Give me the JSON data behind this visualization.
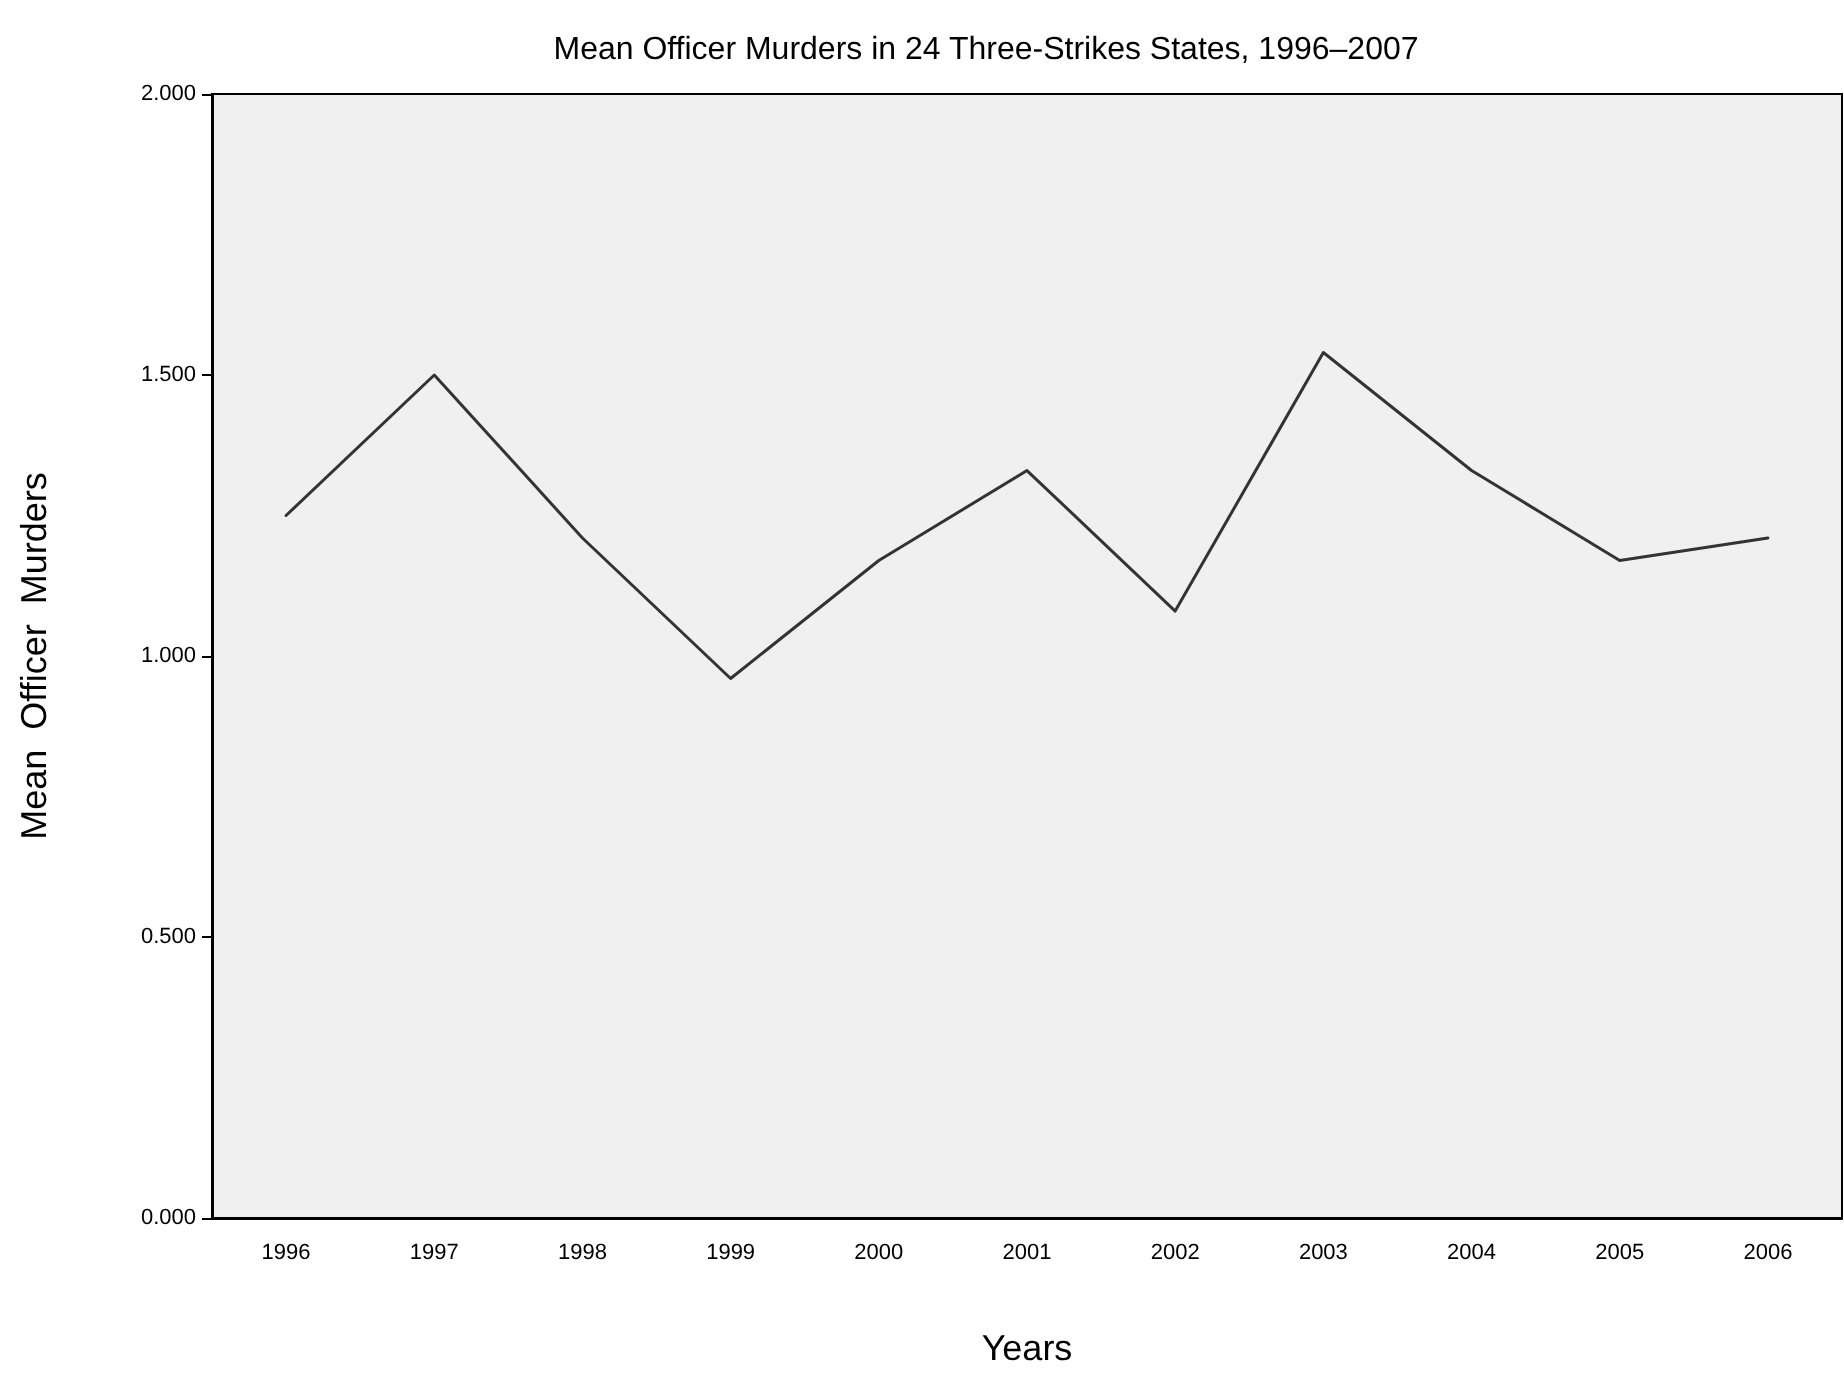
{
  "chart_data": {
    "type": "line",
    "title": "Mean Officer Murders in 24 Three-Strikes States, 1996–2007",
    "xlabel": "Years",
    "ylabel": "Mean  Officer  Murders",
    "categories": [
      "1996",
      "1997",
      "1998",
      "1999",
      "2000",
      "2001",
      "2002",
      "2003",
      "2004",
      "2005",
      "2006"
    ],
    "series": [
      {
        "color": "#333333",
        "values": [
          1.25,
          1.5,
          1.21,
          0.96,
          1.17,
          1.33,
          1.08,
          1.54,
          1.33,
          1.17,
          1.21
        ]
      }
    ],
    "ylim": [
      0,
      2
    ],
    "yticks": [
      {
        "value": 0,
        "label": "0.000"
      },
      {
        "value": 0.5,
        "label": "0.500"
      },
      {
        "value": 1,
        "label": "1.000"
      },
      {
        "value": 1.5,
        "label": "1.500"
      },
      {
        "value": 2,
        "label": "2.000"
      }
    ],
    "grid": false,
    "marker": "none",
    "line_style": "solid"
  }
}
